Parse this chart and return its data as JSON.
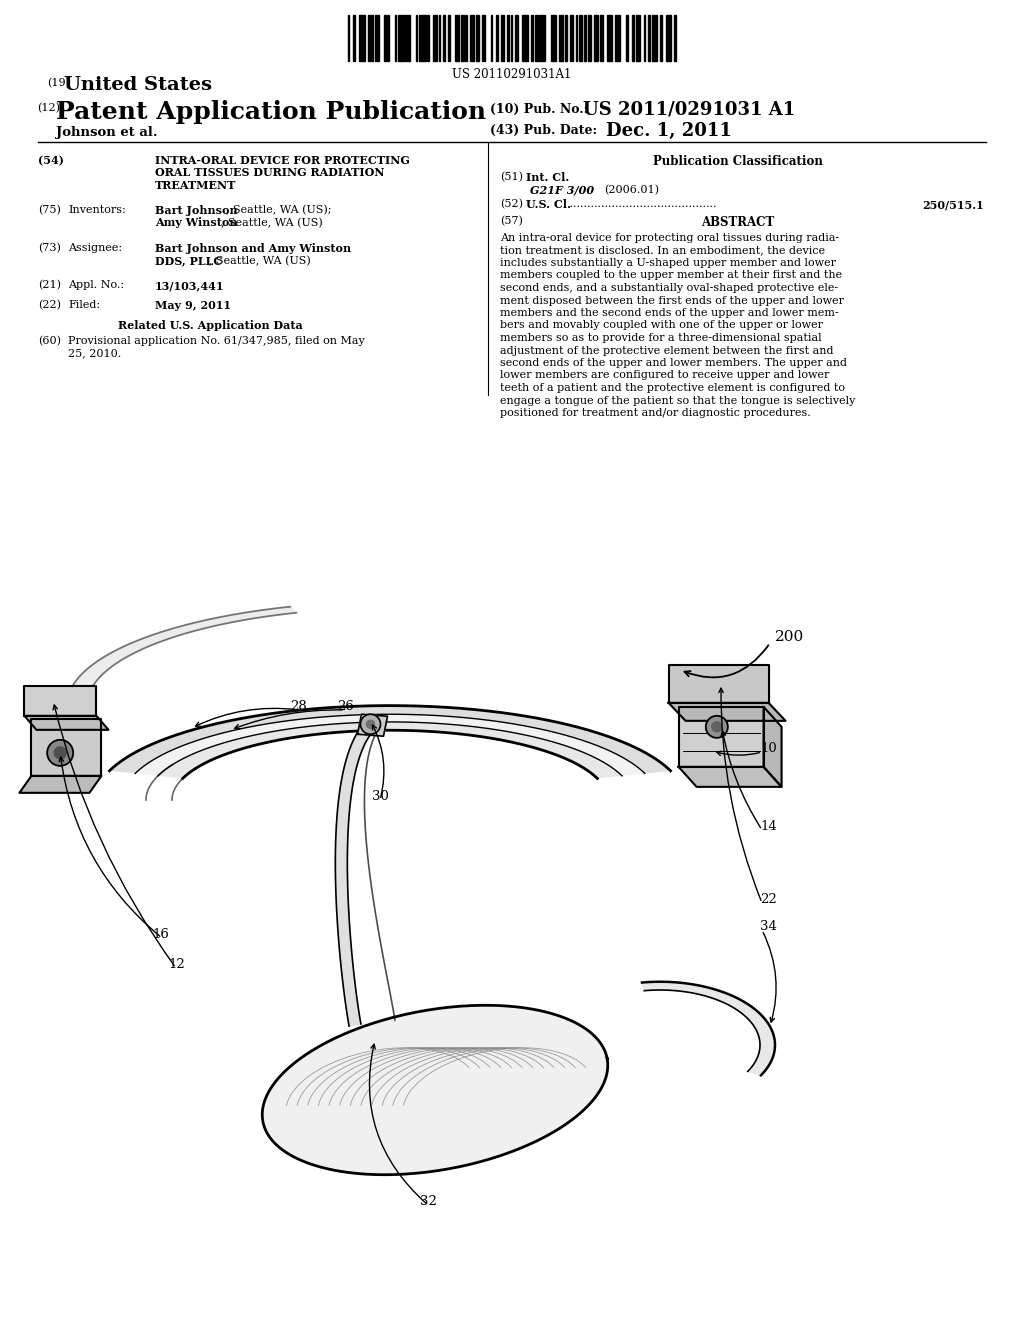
{
  "background_color": "#ffffff",
  "barcode_text": "US 20110291031A1",
  "title_19_text": "United States",
  "title_12_text": "Patent Application Publication",
  "title_10_label": "(10) Pub. No.:",
  "title_10_value": "US 2011/0291031 A1",
  "title_43_label": "(43) Pub. Date:",
  "title_43_value": "Dec. 1, 2011",
  "authors": "Johnson et al.",
  "field_54_label": "(54)",
  "field_54_line1": "INTRA-ORAL DEVICE FOR PROTECTING",
  "field_54_line2": "ORAL TISSUES DURING RADIATION",
  "field_54_line3": "TREATMENT",
  "field_75_label": "(75)",
  "field_75_title": "Inventors:",
  "field_73_label": "(73)",
  "field_73_title": "Assignee:",
  "field_21_label": "(21)",
  "field_21_title": "Appl. No.:",
  "field_21_text": "13/103,441",
  "field_22_label": "(22)",
  "field_22_title": "Filed:",
  "field_22_text": "May 9, 2011",
  "related_title": "Related U.S. Application Data",
  "field_60_label": "(60)",
  "field_60_line1": "Provisional application No. 61/347,985, filed on May",
  "field_60_line2": "25, 2010.",
  "pub_class_title": "Publication Classification",
  "field_51_label": "(51)",
  "field_51_title": "Int. Cl.",
  "field_51_class": "G21F 3/00",
  "field_51_year": "(2006.01)",
  "field_52_label": "(52)",
  "field_52_title": "U.S. Cl.",
  "field_52_value": "250/515.1",
  "field_57_label": "(57)",
  "field_57_title": "ABSTRACT",
  "abstract_lines": [
    "An intra-oral device for protecting oral tissues during radia-",
    "tion treatment is disclosed. In an embodiment, the device",
    "includes substantially a U-shaped upper member and lower",
    "members coupled to the upper member at their first and the",
    "second ends, and a substantially oval-shaped protective ele-",
    "ment disposed between the first ends of the upper and lower",
    "members and the second ends of the upper and lower mem-",
    "bers and movably coupled with one of the upper or lower",
    "members so as to provide for a three-dimensional spatial",
    "adjustment of the protective element between the first and",
    "second ends of the upper and lower members. The upper and",
    "lower members are configured to receive upper and lower",
    "teeth of a patient and the protective element is configured to",
    "engage a tongue of the patient so that the tongue is selectively",
    "positioned for treatment and/or diagnostic procedures."
  ],
  "label_200": "200",
  "label_28": "28",
  "label_26": "26",
  "label_30": "30",
  "label_10": "10",
  "label_14": "14",
  "label_16": "16",
  "label_12": "12",
  "label_22": "22",
  "label_34": "34",
  "label_32": "32"
}
